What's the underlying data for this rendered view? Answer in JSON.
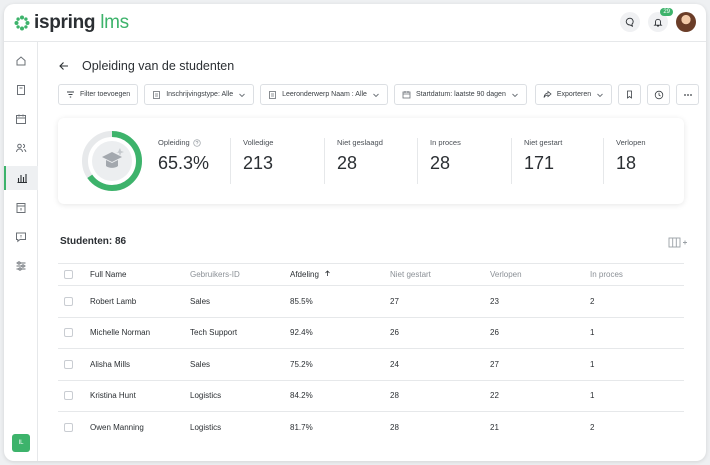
{
  "brand": {
    "name": "ispring",
    "suffix": " lms",
    "accent": "#3db36b"
  },
  "header": {
    "notification_count": "29"
  },
  "sidebar": {
    "items": [
      {
        "icon": "home-icon"
      },
      {
        "icon": "book-icon"
      },
      {
        "icon": "calendar-icon"
      },
      {
        "icon": "users-icon"
      },
      {
        "icon": "bar-chart-icon",
        "active": true
      },
      {
        "icon": "id-card-icon"
      },
      {
        "icon": "help-chat-icon"
      },
      {
        "icon": "sliders-icon"
      }
    ],
    "user_initials": "IL"
  },
  "page": {
    "title": "Opleiding van de studenten"
  },
  "filters": {
    "add_filter": "Filter toevoegen",
    "enrollment_type": "Inschrijvingstype: Alle",
    "course_name": "Leeronderwerp Naam : Alle",
    "start_date": "Startdatum: laatste 90 dagen",
    "export": "Exporteren"
  },
  "summary": {
    "progress_fraction": 0.653,
    "training": {
      "label": "Opleiding",
      "value": "65.3%"
    },
    "completed": {
      "label": "Volledige",
      "value": "213"
    },
    "failed": {
      "label": "Niet geslaagd",
      "value": "28"
    },
    "in_progress": {
      "label": "In proces",
      "value": "28"
    },
    "not_started": {
      "label": "Niet gestart",
      "value": "171"
    },
    "expired": {
      "label": "Verlopen",
      "value": "18"
    }
  },
  "table": {
    "title": "Studenten: 86",
    "headers": {
      "name": "Full Name",
      "user_id": "Gebruikers-ID",
      "department": "Afdeling",
      "not_started": "Niet gestart",
      "expired": "Verlopen",
      "in_progress": "In proces"
    },
    "rows": [
      {
        "name": "Robert Lamb",
        "user_id": "Sales",
        "department": "85.5%",
        "not_started": "27",
        "expired": "23",
        "in_progress": "2"
      },
      {
        "name": "Michelle Norman",
        "user_id": "Tech Support",
        "department": "92.4%",
        "not_started": "26",
        "expired": "26",
        "in_progress": "1"
      },
      {
        "name": "Alisha Mills",
        "user_id": "Sales",
        "department": "75.2%",
        "not_started": "24",
        "expired": "27",
        "in_progress": "1"
      },
      {
        "name": "Kristina Hunt",
        "user_id": "Logistics",
        "department": "84.2%",
        "not_started": "28",
        "expired": "22",
        "in_progress": "1"
      },
      {
        "name": "Owen Manning",
        "user_id": "Logistics",
        "department": "81.7%",
        "not_started": "28",
        "expired": "21",
        "in_progress": "2"
      }
    ]
  }
}
